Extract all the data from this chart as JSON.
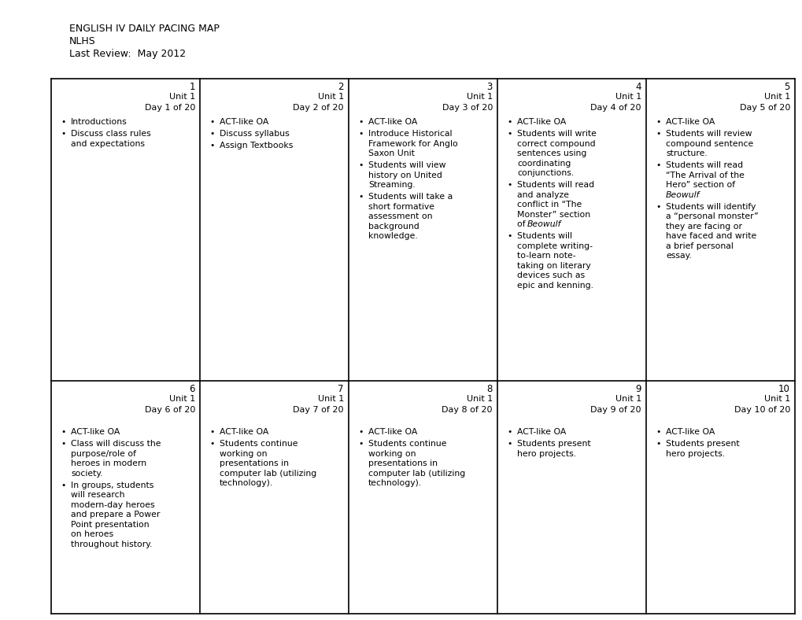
{
  "title_lines": [
    "ENGLISH IV DAILY PACING MAP",
    "NLHS",
    "Last Review:  May 2012"
  ],
  "bg_color": "#ffffff",
  "text_color": "#000000",
  "grid_color": "#000000",
  "num_cols": 5,
  "num_rows": 2,
  "cells": [
    {
      "row": 0,
      "col": 0,
      "day_num": "1",
      "unit": "Unit 1",
      "day_label": "Day 1 of 20",
      "bullets": [
        "Introductions",
        "Discuss class rules\nand expectations"
      ]
    },
    {
      "row": 0,
      "col": 1,
      "day_num": "2",
      "unit": "Unit 1",
      "day_label": "Day 2 of 20",
      "bullets": [
        "ACT-like OA",
        "Discuss syllabus",
        "Assign Textbooks"
      ]
    },
    {
      "row": 0,
      "col": 2,
      "day_num": "3",
      "unit": "Unit 1",
      "day_label": "Day 3 of 20",
      "bullets": [
        "ACT-like OA",
        "Introduce Historical\nFramework for Anglo\nSaxon Unit",
        "Students will view\nhistory on United\nStreaming.",
        "Students will take a\nshort formative\nassessment on\nbackground\nknowledge."
      ]
    },
    {
      "row": 0,
      "col": 3,
      "day_num": "4",
      "unit": "Unit 1",
      "day_label": "Day 4 of 20",
      "bullets": [
        "ACT-like OA",
        "Students will write\ncorrect compound\nsentences using\ncoordinating\nconjunctions.",
        "Students will read\nand analyze\nconflict in “The\nMonster” section\nof Beowulf .",
        "Students will\ncomplete writing-\nto-learn note-\ntaking on literary\ndevices such as\nepic and kenning."
      ]
    },
    {
      "row": 0,
      "col": 4,
      "day_num": "5",
      "unit": "Unit 1",
      "day_label": "Day 5 of 20",
      "bullets": [
        "ACT-like OA",
        "Students will review\ncompound sentence\nstructure.",
        "Students will read\n“The Arrival of the\nHero” section of\nBeowulf.",
        "Students will identify\na “personal monster”\nthey are facing or\nhave faced and write\na brief personal\nessay."
      ]
    },
    {
      "row": 1,
      "col": 0,
      "day_num": "6",
      "unit": "Unit 1",
      "day_label": "Day 6 of 20",
      "bullets": [
        "ACT-like OA",
        "Class will discuss the\npurpose/role of\nheroes in modern\nsociety.",
        "In groups, students\nwill research\nmodern-day heroes\nand prepare a Power\nPoint presentation\non heroes\nthroughout history."
      ]
    },
    {
      "row": 1,
      "col": 1,
      "day_num": "7",
      "unit": "Unit 1",
      "day_label": "Day 7 of 20",
      "bullets": [
        "ACT-like OA",
        "Students continue\nworking on\npresentations in\ncomputer lab (utilizing\ntechnology)."
      ]
    },
    {
      "row": 1,
      "col": 2,
      "day_num": "8",
      "unit": "Unit 1",
      "day_label": "Day 8 of 20",
      "bullets": [
        "ACT-like OA",
        "Students continue\nworking on\npresentations in\ncomputer lab (utilizing\ntechnology)."
      ]
    },
    {
      "row": 1,
      "col": 3,
      "day_num": "9",
      "unit": "Unit 1",
      "day_label": "Day 9 of 20",
      "bullets": [
        "ACT-like OA",
        "Students present\nhero projects."
      ]
    },
    {
      "row": 1,
      "col": 4,
      "day_num": "10",
      "unit": "Unit 1",
      "day_label": "Day 10 of 20",
      "bullets": [
        "ACT-like OA",
        "Students present\nhero projects."
      ]
    }
  ]
}
